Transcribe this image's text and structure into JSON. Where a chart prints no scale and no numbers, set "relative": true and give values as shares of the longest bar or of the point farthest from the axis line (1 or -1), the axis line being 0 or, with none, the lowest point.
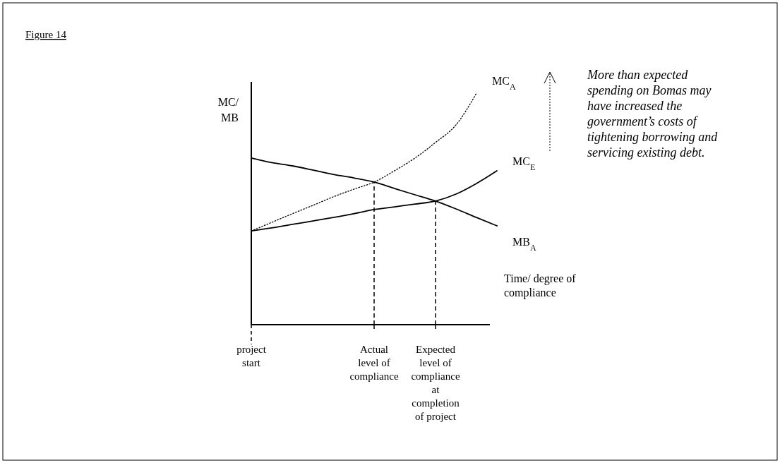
{
  "chart_data": {
    "type": "line",
    "title": "Figure 14",
    "xlabel": "Time/ degree of compliance",
    "ylabel": "MC/ MB",
    "relative": true,
    "categories": [
      "project start",
      null,
      null,
      null,
      null,
      null,
      "Actual level of compliance",
      null,
      null,
      "Expected level of compliance at completion of project",
      null,
      null,
      null
    ],
    "series": [
      {
        "name": "MB$_{A}$",
        "color": "#000000",
        "line_style": "solid",
        "values": [
          0.72,
          0.7,
          0.686,
          0.668,
          0.649,
          0.634,
          0.616,
          0.588,
          0.561,
          0.534,
          0.5,
          0.463,
          0.427
        ]
      },
      {
        "name": "MC$_{E}$",
        "color": "#000000",
        "line_style": "solid",
        "values": [
          0.405,
          0.418,
          0.433,
          0.448,
          0.463,
          0.479,
          0.497,
          0.509,
          0.521,
          0.534,
          0.564,
          0.61,
          0.665
        ]
      },
      {
        "name": "MC$_{A}$",
        "color": "#000000",
        "line_style": "dotted",
        "values": [
          0.405,
          0.442,
          0.479,
          0.515,
          0.552,
          0.585,
          0.616,
          0.665,
          0.72,
          0.787,
          0.863,
          1,
          null
        ]
      }
    ],
    "ref_lines": [
      {
        "axis": "x",
        "value": "Actual level of compliance",
        "line_style": "dashed"
      },
      {
        "axis": "x",
        "value": "Expected level of compliance at completion of project",
        "line_style": "dashed"
      }
    ],
    "annotations": [
      "More than expected spending on Bomas may have increased the government’s costs of tightening borrowing and servicing existing debt."
    ]
  }
}
